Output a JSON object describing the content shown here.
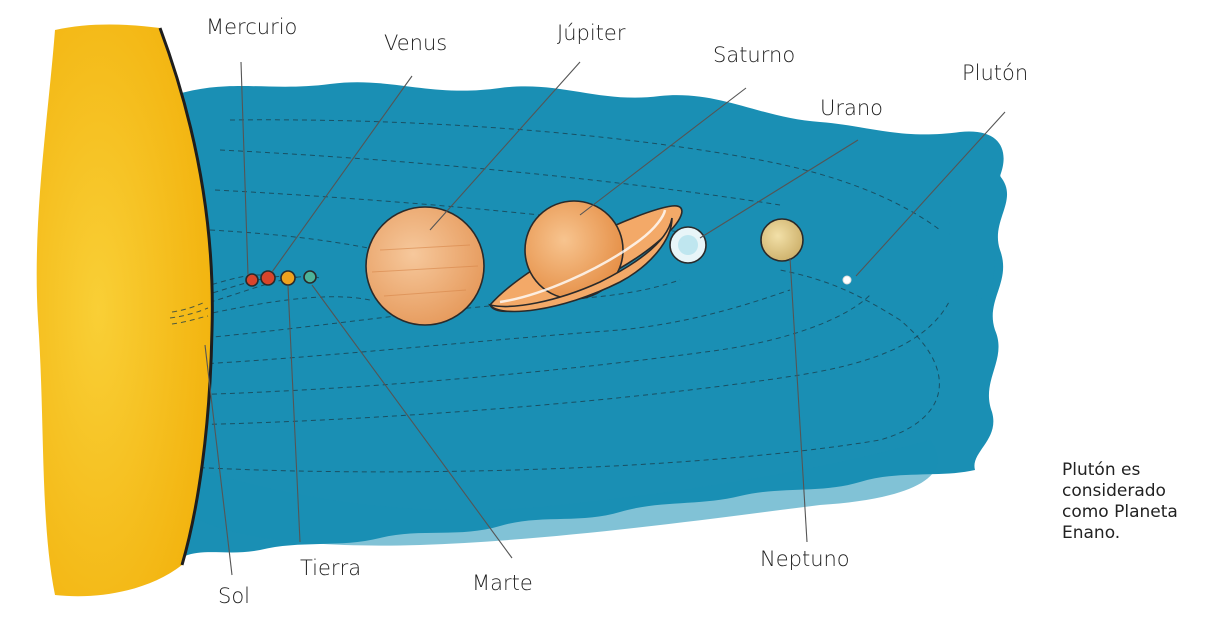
{
  "labels": {
    "mercurio": "Mercurio",
    "venus": "Venus",
    "jupiter": "Júpiter",
    "saturno": "Saturno",
    "urano": "Urano",
    "pluton": "Plutón",
    "sol": "Sol",
    "tierra": "Tierra",
    "marte": "Marte",
    "neptuno": "Neptuno"
  },
  "note": "Plutón es considerado como Planeta Enano.",
  "colors": {
    "space": "#1a8fb4",
    "sun": "#f7c21a",
    "mercurio": "#d9452b",
    "venus": "#d9452b",
    "tierra": "#f0a21e",
    "marte": "#4cb39a",
    "jupiter": "#f0b07a",
    "saturno": "#f0a665",
    "urano": "#e8f5f8",
    "neptuno": "#e8cf8d",
    "pluton": "#ffffff"
  }
}
